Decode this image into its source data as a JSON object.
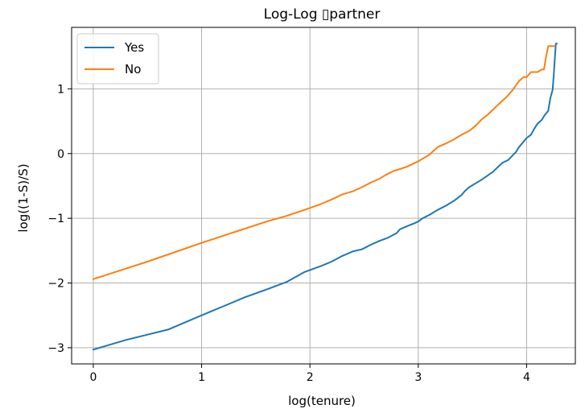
{
  "chart_data": {
    "type": "line",
    "title": "Log-Log ▯partner",
    "xlabel": "log(tenure)",
    "ylabel": "log((1-S)/S)",
    "xlim": [
      -0.2,
      4.45
    ],
    "ylim": [
      -3.25,
      1.95
    ],
    "x_ticks": [
      0,
      1,
      2,
      3,
      4
    ],
    "x_tick_labels": [
      "0",
      "1",
      "2",
      "3",
      "4"
    ],
    "y_ticks": [
      -3,
      -2,
      -1,
      0,
      1
    ],
    "y_tick_labels": [
      "−3",
      "−2",
      "−1",
      "0",
      "1"
    ],
    "grid": true,
    "legend_position": "top-left",
    "series": [
      {
        "name": "Yes",
        "color": "#1f77b4",
        "points": [
          [
            0.0,
            -3.03
          ],
          [
            0.3,
            -2.88
          ],
          [
            0.69,
            -2.72
          ],
          [
            1.0,
            -2.5
          ],
          [
            1.2,
            -2.36
          ],
          [
            1.4,
            -2.22
          ],
          [
            1.6,
            -2.1
          ],
          [
            1.79,
            -1.98
          ],
          [
            1.95,
            -1.83
          ],
          [
            2.1,
            -1.74
          ],
          [
            2.2,
            -1.67
          ],
          [
            2.3,
            -1.58
          ],
          [
            2.4,
            -1.51
          ],
          [
            2.48,
            -1.48
          ],
          [
            2.56,
            -1.41
          ],
          [
            2.64,
            -1.35
          ],
          [
            2.72,
            -1.3
          ],
          [
            2.8,
            -1.23
          ],
          [
            2.83,
            -1.17
          ],
          [
            2.9,
            -1.12
          ],
          [
            2.96,
            -1.08
          ],
          [
            3.0,
            -1.05
          ],
          [
            3.04,
            -1.0
          ],
          [
            3.1,
            -0.95
          ],
          [
            3.18,
            -0.87
          ],
          [
            3.26,
            -0.8
          ],
          [
            3.33,
            -0.73
          ],
          [
            3.4,
            -0.64
          ],
          [
            3.43,
            -0.58
          ],
          [
            3.47,
            -0.52
          ],
          [
            3.53,
            -0.46
          ],
          [
            3.58,
            -0.41
          ],
          [
            3.64,
            -0.34
          ],
          [
            3.69,
            -0.28
          ],
          [
            3.74,
            -0.2
          ],
          [
            3.78,
            -0.14
          ],
          [
            3.83,
            -0.1
          ],
          [
            3.87,
            -0.03
          ],
          [
            3.9,
            0.02
          ],
          [
            3.93,
            0.1
          ],
          [
            3.97,
            0.18
          ],
          [
            4.0,
            0.24
          ],
          [
            4.04,
            0.29
          ],
          [
            4.07,
            0.38
          ],
          [
            4.1,
            0.46
          ],
          [
            4.14,
            0.52
          ],
          [
            4.17,
            0.6
          ],
          [
            4.2,
            0.66
          ],
          [
            4.22,
            0.86
          ],
          [
            4.24,
            0.98
          ],
          [
            4.25,
            1.2
          ],
          [
            4.26,
            1.45
          ],
          [
            4.27,
            1.7
          ],
          [
            4.28,
            1.7
          ]
        ]
      },
      {
        "name": "No",
        "color": "#ff7f0e",
        "points": [
          [
            0.0,
            -1.94
          ],
          [
            0.5,
            -1.67
          ],
          [
            1.0,
            -1.38
          ],
          [
            1.2,
            -1.27
          ],
          [
            1.4,
            -1.16
          ],
          [
            1.6,
            -1.05
          ],
          [
            1.79,
            -0.96
          ],
          [
            1.95,
            -0.87
          ],
          [
            2.1,
            -0.78
          ],
          [
            2.2,
            -0.71
          ],
          [
            2.3,
            -0.63
          ],
          [
            2.4,
            -0.58
          ],
          [
            2.48,
            -0.52
          ],
          [
            2.56,
            -0.45
          ],
          [
            2.64,
            -0.39
          ],
          [
            2.7,
            -0.33
          ],
          [
            2.77,
            -0.27
          ],
          [
            2.83,
            -0.24
          ],
          [
            2.9,
            -0.2
          ],
          [
            2.96,
            -0.15
          ],
          [
            3.0,
            -0.12
          ],
          [
            3.04,
            -0.08
          ],
          [
            3.1,
            -0.02
          ],
          [
            3.14,
            0.04
          ],
          [
            3.18,
            0.1
          ],
          [
            3.22,
            0.13
          ],
          [
            3.26,
            0.16
          ],
          [
            3.33,
            0.22
          ],
          [
            3.4,
            0.29
          ],
          [
            3.47,
            0.35
          ],
          [
            3.53,
            0.43
          ],
          [
            3.58,
            0.52
          ],
          [
            3.64,
            0.6
          ],
          [
            3.69,
            0.68
          ],
          [
            3.74,
            0.76
          ],
          [
            3.78,
            0.82
          ],
          [
            3.83,
            0.9
          ],
          [
            3.87,
            0.98
          ],
          [
            3.9,
            1.05
          ],
          [
            3.93,
            1.12
          ],
          [
            3.97,
            1.18
          ],
          [
            4.0,
            1.18
          ],
          [
            4.04,
            1.26
          ],
          [
            4.1,
            1.26
          ],
          [
            4.14,
            1.3
          ],
          [
            4.16,
            1.3
          ],
          [
            4.18,
            1.5
          ],
          [
            4.2,
            1.66
          ],
          [
            4.26,
            1.66
          ]
        ]
      }
    ]
  }
}
